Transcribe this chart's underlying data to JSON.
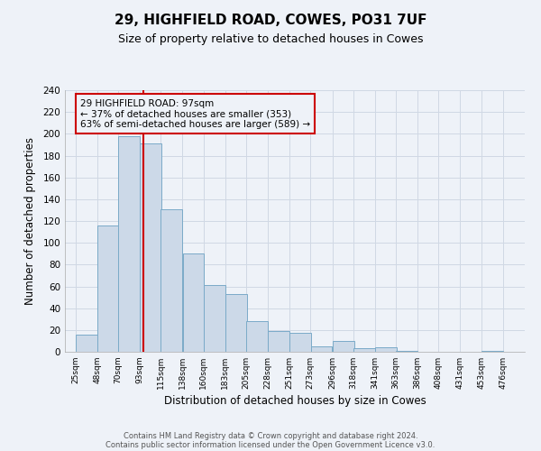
{
  "title1": "29, HIGHFIELD ROAD, COWES, PO31 7UF",
  "title2": "Size of property relative to detached houses in Cowes",
  "xlabel": "Distribution of detached houses by size in Cowes",
  "ylabel": "Number of detached properties",
  "bar_left_edges": [
    25,
    48,
    70,
    93,
    115,
    138,
    160,
    183,
    205,
    228,
    251,
    273,
    296,
    318,
    341,
    363,
    386,
    408,
    431,
    453
  ],
  "bar_heights": [
    16,
    116,
    198,
    191,
    131,
    90,
    61,
    53,
    28,
    19,
    17,
    5,
    10,
    3,
    4,
    1,
    0,
    0,
    0,
    1
  ],
  "bin_width": 23,
  "tick_labels": [
    "25sqm",
    "48sqm",
    "70sqm",
    "93sqm",
    "115sqm",
    "138sqm",
    "160sqm",
    "183sqm",
    "205sqm",
    "228sqm",
    "251sqm",
    "273sqm",
    "296sqm",
    "318sqm",
    "341sqm",
    "363sqm",
    "386sqm",
    "408sqm",
    "431sqm",
    "453sqm",
    "476sqm"
  ],
  "tick_positions": [
    25,
    48,
    70,
    93,
    115,
    138,
    160,
    183,
    205,
    228,
    251,
    273,
    296,
    318,
    341,
    363,
    386,
    408,
    431,
    453,
    476
  ],
  "property_line_x": 97,
  "ylim": [
    0,
    240
  ],
  "yticks": [
    0,
    20,
    40,
    60,
    80,
    100,
    120,
    140,
    160,
    180,
    200,
    220,
    240
  ],
  "bar_facecolor": "#ccd9e8",
  "bar_edgecolor": "#7aaac8",
  "grid_color": "#d0d8e4",
  "annotation_text": "29 HIGHFIELD ROAD: 97sqm\n← 37% of detached houses are smaller (353)\n63% of semi-detached houses are larger (589) →",
  "annotation_box_edgecolor": "#cc0000",
  "property_line_color": "#cc0000",
  "footer1": "Contains HM Land Registry data © Crown copyright and database right 2024.",
  "footer2": "Contains public sector information licensed under the Open Government Licence v3.0.",
  "bg_color": "#eef2f8",
  "plot_bg_color": "#eef2f8",
  "title1_fontsize": 11,
  "title2_fontsize": 9
}
